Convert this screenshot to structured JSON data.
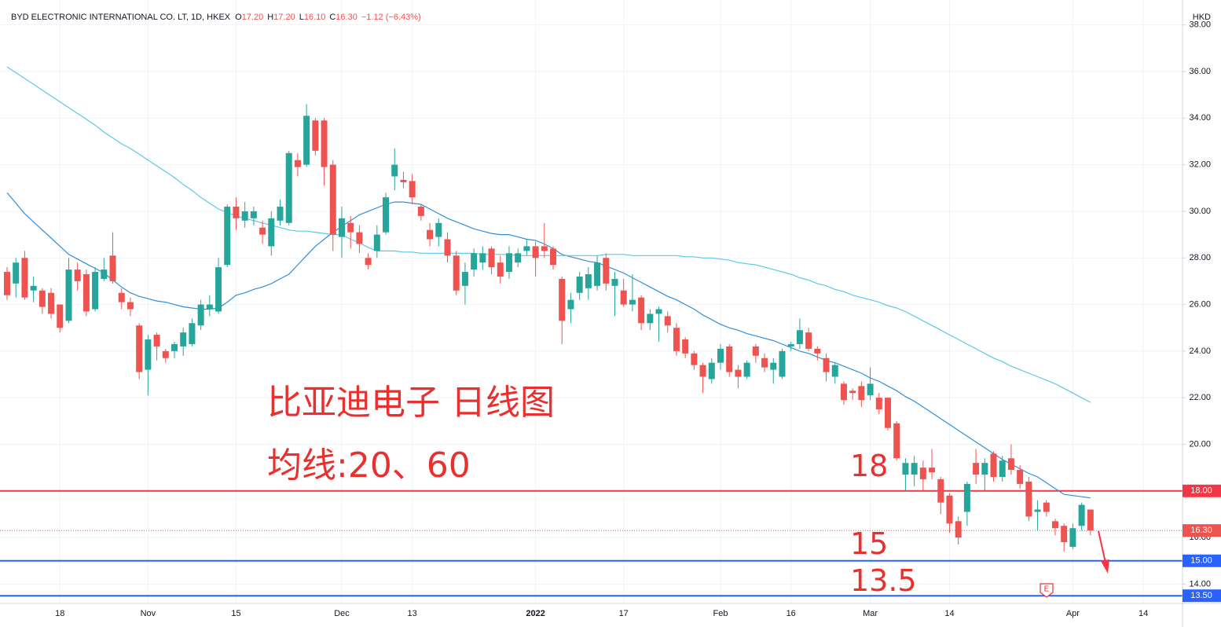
{
  "chart_data": {
    "type": "candlestick",
    "header": {
      "symbol": "BYD ELECTRONIC INTERNATIONAL CO. LT, 1D, HKEX",
      "ohlc": [
        {
          "label": "O",
          "value": "17.20"
        },
        {
          "label": "H",
          "value": "17.20"
        },
        {
          "label": "L",
          "value": "16.10"
        },
        {
          "label": "C",
          "value": "16.30"
        }
      ],
      "change": "−1.12 (−6.43%)"
    },
    "currency": "HKD",
    "annotations": [
      "比亚迪电子 日线图",
      "均线:20、60",
      "18",
      "15",
      "13.5"
    ],
    "earnings_marker": "E",
    "up_color": "#26a69a",
    "down_color": "#ef5350",
    "grid": true,
    "categories": [
      null,
      null,
      null,
      null,
      null,
      null,
      "18",
      null,
      null,
      null,
      null,
      null,
      null,
      null,
      null,
      null,
      "Nov",
      null,
      null,
      null,
      null,
      null,
      null,
      null,
      null,
      null,
      "15",
      null,
      null,
      null,
      null,
      null,
      null,
      null,
      null,
      null,
      null,
      null,
      "Dec",
      null,
      null,
      null,
      null,
      null,
      null,
      null,
      "13",
      null,
      null,
      null,
      null,
      null,
      null,
      null,
      null,
      null,
      null,
      null,
      null,
      null,
      "2022",
      null,
      null,
      null,
      null,
      null,
      null,
      null,
      null,
      null,
      "17",
      null,
      null,
      null,
      null,
      null,
      null,
      null,
      null,
      null,
      null,
      "Feb",
      null,
      null,
      null,
      null,
      null,
      null,
      null,
      "16",
      null,
      null,
      null,
      null,
      null,
      null,
      null,
      null,
      "Mar",
      null,
      null,
      null,
      null,
      null,
      null,
      null,
      null,
      "14",
      null,
      null,
      null,
      null,
      null,
      null,
      null,
      null,
      null,
      null,
      null,
      null,
      null,
      "Apr",
      null,
      null,
      null,
      null,
      null,
      null,
      null,
      "14"
    ],
    "open": [
      27.4,
      26.9,
      28.0,
      26.6,
      26.6,
      26.5,
      26.0,
      25.3,
      27.5,
      27.3,
      25.8,
      27.1,
      28.1,
      26.5,
      26.1,
      25.1,
      23.2,
      24.7,
      24.0,
      24.0,
      24.2,
      24.3,
      25.1,
      25.8,
      25.7,
      27.7,
      30.2,
      29.6,
      29.7,
      29.3,
      28.5,
      29.6,
      29.5,
      32.2,
      32.0,
      33.9,
      33.9,
      32.0,
      28.9,
      29.5,
      29.1,
      28.0,
      28.3,
      29.1,
      31.5,
      31.35,
      31.3,
      30.2,
      29.2,
      28.9,
      28.8,
      28.1,
      26.8,
      27.5,
      27.8,
      28.4,
      27.8,
      27.4,
      27.8,
      28.3,
      28.5,
      28.5,
      28.4,
      27.1,
      25.8,
      26.5,
      26.7,
      26.8,
      28.0,
      26.8,
      26.6,
      26.0,
      26.3,
      25.2,
      25.6,
      25.5,
      25.0,
      24.5,
      23.9,
      23.4,
      22.8,
      23.5,
      24.2,
      23.2,
      22.9,
      24.2,
      23.7,
      23.2,
      22.9,
      24.2,
      24.3,
      24.8,
      24.1,
      23.7,
      22.9,
      22.6,
      22.3,
      22.5,
      22.1,
      22.0,
      22.0,
      20.9,
      18.7,
      18.7,
      19.0,
      19.0,
      18.5,
      17.8,
      16.7,
      17.1,
      19.2,
      18.7,
      19.6,
      18.6,
      19.4,
      18.9,
      18.4,
      17.1,
      17.5,
      16.7,
      16.5,
      15.6,
      16.5,
      17.2,
      null,
      null,
      null,
      null,
      null,
      null
    ],
    "high": [
      27.6,
      28.0,
      28.3,
      27.2,
      26.7,
      26.7,
      26.0,
      28.0,
      27.8,
      27.5,
      27.6,
      28.0,
      29.1,
      26.7,
      26.3,
      25.2,
      24.7,
      24.8,
      24.1,
      24.4,
      25.0,
      25.4,
      26.2,
      26.4,
      28.0,
      30.3,
      30.6,
      30.4,
      30.2,
      29.6,
      30.0,
      30.5,
      32.6,
      32.5,
      34.6,
      34.0,
      34.0,
      32.2,
      30.2,
      29.8,
      29.4,
      28.2,
      29.4,
      30.8,
      32.7,
      31.7,
      31.6,
      30.3,
      29.5,
      29.7,
      29.1,
      28.3,
      27.8,
      28.4,
      28.5,
      28.5,
      28.1,
      28.5,
      28.4,
      28.8,
      28.7,
      29.5,
      28.5,
      27.2,
      26.5,
      27.4,
      27.6,
      28.1,
      28.2,
      27.4,
      27.1,
      27.3,
      26.4,
      25.8,
      25.9,
      25.7,
      25.2,
      24.6,
      24.0,
      23.5,
      23.7,
      24.3,
      24.3,
      23.4,
      23.6,
      24.3,
      23.9,
      23.7,
      24.1,
      24.4,
      25.4,
      25.0,
      24.2,
      23.9,
      23.5,
      22.7,
      22.4,
      22.7,
      23.3,
      22.2,
      22.0,
      21.0,
      19.4,
      19.5,
      19.3,
      19.8,
      18.6,
      17.9,
      16.9,
      18.4,
      19.8,
      19.4,
      19.7,
      19.5,
      20.0,
      19.1,
      18.6,
      17.6,
      17.6,
      16.8,
      16.6,
      16.6,
      17.5,
      17.2,
      null,
      null,
      null,
      null,
      null,
      null
    ],
    "low": [
      26.2,
      26.3,
      26.2,
      26.1,
      25.6,
      25.4,
      24.8,
      25.2,
      26.6,
      25.5,
      25.7,
      27.0,
      26.9,
      25.8,
      25.5,
      22.8,
      22.1,
      23.6,
      23.5,
      23.7,
      23.8,
      24.2,
      24.9,
      25.5,
      25.6,
      27.6,
      29.2,
      29.3,
      29.4,
      28.6,
      28.1,
      29.4,
      29.4,
      31.5,
      31.9,
      32.4,
      31.1,
      28.3,
      28.0,
      28.4,
      28.2,
      27.5,
      28.0,
      29.0,
      30.9,
      31.0,
      30.3,
      29.6,
      28.5,
      28.5,
      27.8,
      26.4,
      26.0,
      27.2,
      27.5,
      27.3,
      26.9,
      27.1,
      27.6,
      28.1,
      27.2,
      28.0,
      27.5,
      24.3,
      25.2,
      26.2,
      26.2,
      26.6,
      26.6,
      25.5,
      25.9,
      25.7,
      24.9,
      24.9,
      24.4,
      24.8,
      23.8,
      23.7,
      23.2,
      22.2,
      22.6,
      23.2,
      22.9,
      22.4,
      22.8,
      23.5,
      23.1,
      22.6,
      22.8,
      24.0,
      24.1,
      24.0,
      23.6,
      22.7,
      22.6,
      21.7,
      21.9,
      21.6,
      21.9,
      21.3,
      20.6,
      19.3,
      18.0,
      18.2,
      18.0,
      18.5,
      17.0,
      16.2,
      15.7,
      16.5,
      18.3,
      18.0,
      18.4,
      18.4,
      18.7,
      18.1,
      16.7,
      16.3,
      16.9,
      16.1,
      15.4,
      15.5,
      16.3,
      16.1,
      null,
      null,
      null,
      null,
      null,
      null
    ],
    "close": [
      26.4,
      27.8,
      26.3,
      26.8,
      25.9,
      25.6,
      25.0,
      27.5,
      27.0,
      25.7,
      27.4,
      27.5,
      27.0,
      26.1,
      25.8,
      23.1,
      24.5,
      24.2,
      23.7,
      24.3,
      24.8,
      25.2,
      26.0,
      26.0,
      27.6,
      30.2,
      29.7,
      30.0,
      30.0,
      29.0,
      29.7,
      30.2,
      32.5,
      31.9,
      34.1,
      32.6,
      31.9,
      29.0,
      29.7,
      29.1,
      28.6,
      27.7,
      29.0,
      30.6,
      32.0,
      31.25,
      30.6,
      29.8,
      28.8,
      29.5,
      28.1,
      26.6,
      27.4,
      28.2,
      28.2,
      27.6,
      27.2,
      28.2,
      28.2,
      28.5,
      28.0,
      28.3,
      27.7,
      25.3,
      26.2,
      27.2,
      27.3,
      27.8,
      26.9,
      27.1,
      26.0,
      26.2,
      25.2,
      25.6,
      25.8,
      25.1,
      24.0,
      23.9,
      23.4,
      22.9,
      23.5,
      24.1,
      23.1,
      22.9,
      23.5,
      23.8,
      23.3,
      23.5,
      24.0,
      24.3,
      24.9,
      24.1,
      23.9,
      23.1,
      23.4,
      21.9,
      22.2,
      21.9,
      22.6,
      21.5,
      20.7,
      19.4,
      19.2,
      19.2,
      18.5,
      18.8,
      17.5,
      16.6,
      16.0,
      18.3,
      18.7,
      19.2,
      18.6,
      19.3,
      18.9,
      18.3,
      16.9,
      17.2,
      17.1,
      16.4,
      15.8,
      16.4,
      17.4,
      16.3,
      null,
      null,
      null,
      null,
      null,
      null
    ],
    "series": [
      {
        "color": "#2f8fdc",
        "values": [
          30.8,
          30.35,
          29.9,
          29.55,
          29.2,
          28.85,
          28.5,
          28.15,
          27.95,
          27.75,
          27.55,
          27.35,
          27.05,
          26.75,
          26.5,
          26.35,
          26.25,
          26.15,
          26.1,
          26.0,
          25.9,
          25.85,
          25.8,
          25.8,
          25.85,
          26.1,
          26.4,
          26.5,
          26.65,
          26.75,
          26.9,
          27.1,
          27.3,
          27.7,
          28.1,
          28.5,
          28.8,
          29.1,
          29.35,
          29.6,
          29.85,
          30.0,
          30.15,
          30.3,
          30.4,
          30.4,
          30.35,
          30.3,
          30.1,
          29.9,
          29.7,
          29.55,
          29.4,
          29.25,
          29.15,
          29.05,
          29.0,
          29.0,
          28.9,
          28.8,
          28.75,
          28.6,
          28.4,
          28.15,
          28.05,
          27.95,
          27.85,
          27.8,
          27.65,
          27.5,
          27.35,
          27.15,
          26.95,
          26.75,
          26.55,
          26.35,
          26.2,
          26.0,
          25.8,
          25.55,
          25.35,
          25.15,
          25.0,
          24.9,
          24.75,
          24.65,
          24.55,
          24.45,
          24.3,
          24.15,
          24.0,
          23.9,
          23.75,
          23.6,
          23.5,
          23.35,
          23.2,
          23.05,
          22.85,
          22.7,
          22.5,
          22.3,
          22.05,
          21.85,
          21.6,
          21.35,
          21.1,
          20.85,
          20.6,
          20.35,
          20.1,
          19.85,
          19.6,
          19.35,
          19.15,
          18.95,
          18.75,
          18.6,
          18.35,
          18.1,
          17.85,
          17.8,
          17.75,
          17.7,
          null,
          null,
          null,
          null,
          null,
          null
        ]
      },
      {
        "color": "#5bc8e6",
        "values": [
          36.2,
          35.95,
          35.7,
          35.45,
          35.2,
          34.95,
          34.7,
          34.45,
          34.2,
          33.95,
          33.7,
          33.4,
          33.15,
          32.9,
          32.7,
          32.45,
          32.2,
          31.95,
          31.7,
          31.45,
          31.15,
          30.9,
          30.6,
          30.35,
          30.1,
          29.95,
          29.8,
          29.7,
          29.6,
          29.5,
          29.4,
          29.3,
          29.2,
          29.15,
          29.15,
          29.1,
          29.05,
          29.0,
          29.0,
          28.8,
          28.65,
          28.45,
          28.3,
          28.3,
          28.3,
          28.25,
          28.25,
          28.2,
          28.2,
          28.2,
          28.2,
          28.2,
          28.2,
          28.2,
          28.15,
          28.15,
          28.15,
          28.15,
          28.1,
          28.1,
          28.1,
          28.1,
          28.1,
          28.1,
          28.1,
          28.1,
          28.1,
          28.1,
          28.15,
          28.15,
          28.15,
          28.1,
          28.1,
          28.1,
          28.1,
          28.1,
          28.1,
          28.05,
          28.05,
          28.0,
          28.0,
          27.95,
          27.9,
          27.8,
          27.75,
          27.7,
          27.6,
          27.5,
          27.4,
          27.3,
          27.15,
          27.05,
          26.9,
          26.8,
          26.65,
          26.55,
          26.4,
          26.3,
          26.2,
          26.1,
          25.95,
          25.85,
          25.7,
          25.5,
          25.3,
          25.1,
          24.9,
          24.7,
          24.5,
          24.3,
          24.1,
          23.9,
          23.7,
          23.55,
          23.35,
          23.2,
          23.05,
          22.9,
          22.75,
          22.6,
          22.4,
          22.2,
          22.0,
          21.8,
          null,
          null,
          null,
          null,
          null,
          null
        ]
      }
    ],
    "ylim": [
      13.17,
      39.07
    ],
    "yticks": [
      {
        "value": 14,
        "label": "14.00"
      },
      {
        "value": 16,
        "label": "16.00"
      },
      {
        "value": 18,
        "label": "18.00"
      },
      {
        "value": 20,
        "label": "20.00"
      },
      {
        "value": 22,
        "label": "22.00"
      },
      {
        "value": 24,
        "label": "24.00"
      },
      {
        "value": 26,
        "label": "26.00"
      },
      {
        "value": 28,
        "label": "28.00"
      },
      {
        "value": 30,
        "label": "30.00"
      },
      {
        "value": 32,
        "label": "32.00"
      },
      {
        "value": 34,
        "label": "34.00"
      },
      {
        "value": 36,
        "label": "36.00"
      },
      {
        "value": 38,
        "label": "38.00"
      }
    ],
    "hlines": [
      {
        "value": 18,
        "label": "18.00",
        "color": "#f23645"
      },
      {
        "value": 15,
        "label": "15.00",
        "color": "#2962ff"
      },
      {
        "value": 13.5,
        "label": "13.50",
        "color": "#2962ff"
      }
    ],
    "last_price": {
      "value": 16.3,
      "label": "16.30",
      "color": "#ef5350"
    }
  }
}
